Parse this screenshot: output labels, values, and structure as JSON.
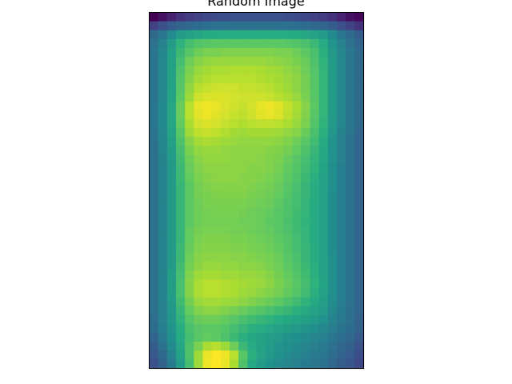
{
  "chart_data": {
    "type": "heatmap",
    "title": "Random Image",
    "colormap": "viridis",
    "axes_ticks": "none",
    "value_range": [
      0,
      1
    ],
    "rows": 40,
    "cols": 24,
    "grid": false,
    "values": [
      [
        0.0,
        0.05,
        0.1,
        0.15,
        0.18,
        0.2,
        0.22,
        0.23,
        0.24,
        0.25,
        0.25,
        0.25,
        0.25,
        0.25,
        0.25,
        0.24,
        0.23,
        0.22,
        0.2,
        0.18,
        0.15,
        0.1,
        0.05,
        0.02
      ],
      [
        0.2,
        0.25,
        0.3,
        0.33,
        0.35,
        0.36,
        0.37,
        0.38,
        0.38,
        0.38,
        0.38,
        0.38,
        0.38,
        0.38,
        0.38,
        0.38,
        0.37,
        0.36,
        0.35,
        0.33,
        0.3,
        0.25,
        0.2,
        0.15
      ],
      [
        0.35,
        0.4,
        0.48,
        0.55,
        0.58,
        0.6,
        0.62,
        0.62,
        0.63,
        0.63,
        0.63,
        0.63,
        0.63,
        0.63,
        0.63,
        0.62,
        0.62,
        0.6,
        0.58,
        0.55,
        0.48,
        0.4,
        0.35,
        0.3
      ],
      [
        0.38,
        0.45,
        0.55,
        0.65,
        0.7,
        0.73,
        0.74,
        0.75,
        0.75,
        0.75,
        0.75,
        0.75,
        0.75,
        0.75,
        0.75,
        0.74,
        0.73,
        0.71,
        0.68,
        0.62,
        0.52,
        0.45,
        0.38,
        0.33
      ],
      [
        0.4,
        0.46,
        0.57,
        0.68,
        0.74,
        0.78,
        0.8,
        0.8,
        0.81,
        0.81,
        0.81,
        0.81,
        0.81,
        0.81,
        0.8,
        0.8,
        0.78,
        0.75,
        0.71,
        0.64,
        0.54,
        0.46,
        0.4,
        0.35
      ],
      [
        0.4,
        0.47,
        0.58,
        0.7,
        0.78,
        0.82,
        0.84,
        0.85,
        0.85,
        0.85,
        0.85,
        0.85,
        0.85,
        0.84,
        0.83,
        0.82,
        0.8,
        0.77,
        0.72,
        0.65,
        0.55,
        0.47,
        0.4,
        0.35
      ],
      [
        0.4,
        0.47,
        0.58,
        0.72,
        0.8,
        0.85,
        0.87,
        0.88,
        0.88,
        0.89,
        0.89,
        0.89,
        0.88,
        0.87,
        0.86,
        0.84,
        0.82,
        0.78,
        0.73,
        0.66,
        0.55,
        0.47,
        0.4,
        0.35
      ],
      [
        0.4,
        0.47,
        0.58,
        0.73,
        0.82,
        0.87,
        0.89,
        0.9,
        0.9,
        0.9,
        0.9,
        0.9,
        0.89,
        0.88,
        0.87,
        0.85,
        0.83,
        0.79,
        0.74,
        0.66,
        0.55,
        0.47,
        0.4,
        0.35
      ],
      [
        0.4,
        0.47,
        0.58,
        0.74,
        0.84,
        0.9,
        0.92,
        0.93,
        0.93,
        0.93,
        0.92,
        0.92,
        0.91,
        0.9,
        0.88,
        0.86,
        0.83,
        0.79,
        0.74,
        0.66,
        0.55,
        0.47,
        0.4,
        0.35
      ],
      [
        0.4,
        0.47,
        0.59,
        0.75,
        0.86,
        0.93,
        0.95,
        0.95,
        0.95,
        0.94,
        0.93,
        0.93,
        0.93,
        0.92,
        0.9,
        0.88,
        0.85,
        0.8,
        0.74,
        0.66,
        0.55,
        0.47,
        0.4,
        0.35
      ],
      [
        0.4,
        0.48,
        0.6,
        0.77,
        0.9,
        0.97,
        0.98,
        0.97,
        0.95,
        0.93,
        0.92,
        0.94,
        0.97,
        0.98,
        0.96,
        0.92,
        0.88,
        0.82,
        0.75,
        0.66,
        0.55,
        0.47,
        0.4,
        0.35
      ],
      [
        0.4,
        0.48,
        0.6,
        0.77,
        0.9,
        0.96,
        0.98,
        0.96,
        0.94,
        0.92,
        0.91,
        0.93,
        0.96,
        0.97,
        0.95,
        0.91,
        0.87,
        0.81,
        0.74,
        0.66,
        0.55,
        0.47,
        0.4,
        0.35
      ],
      [
        0.4,
        0.48,
        0.6,
        0.76,
        0.88,
        0.94,
        0.95,
        0.94,
        0.92,
        0.9,
        0.89,
        0.9,
        0.91,
        0.91,
        0.9,
        0.88,
        0.85,
        0.8,
        0.73,
        0.65,
        0.54,
        0.46,
        0.4,
        0.35
      ],
      [
        0.39,
        0.47,
        0.59,
        0.74,
        0.86,
        0.91,
        0.92,
        0.91,
        0.89,
        0.87,
        0.86,
        0.87,
        0.87,
        0.87,
        0.86,
        0.84,
        0.82,
        0.77,
        0.71,
        0.64,
        0.53,
        0.45,
        0.39,
        0.34
      ],
      [
        0.38,
        0.46,
        0.57,
        0.72,
        0.82,
        0.87,
        0.88,
        0.87,
        0.86,
        0.85,
        0.84,
        0.84,
        0.84,
        0.84,
        0.83,
        0.81,
        0.78,
        0.74,
        0.69,
        0.62,
        0.52,
        0.44,
        0.38,
        0.33
      ],
      [
        0.38,
        0.46,
        0.56,
        0.7,
        0.8,
        0.84,
        0.85,
        0.85,
        0.84,
        0.83,
        0.83,
        0.83,
        0.83,
        0.82,
        0.81,
        0.79,
        0.76,
        0.72,
        0.67,
        0.61,
        0.51,
        0.44,
        0.38,
        0.33
      ],
      [
        0.38,
        0.45,
        0.55,
        0.69,
        0.78,
        0.82,
        0.84,
        0.84,
        0.84,
        0.83,
        0.83,
        0.83,
        0.82,
        0.81,
        0.8,
        0.77,
        0.74,
        0.7,
        0.66,
        0.6,
        0.51,
        0.44,
        0.38,
        0.33
      ],
      [
        0.38,
        0.45,
        0.55,
        0.68,
        0.77,
        0.81,
        0.83,
        0.83,
        0.83,
        0.83,
        0.83,
        0.82,
        0.82,
        0.81,
        0.79,
        0.76,
        0.73,
        0.69,
        0.65,
        0.59,
        0.5,
        0.43,
        0.38,
        0.33
      ],
      [
        0.38,
        0.45,
        0.55,
        0.68,
        0.76,
        0.8,
        0.82,
        0.83,
        0.83,
        0.83,
        0.82,
        0.82,
        0.81,
        0.8,
        0.78,
        0.75,
        0.72,
        0.68,
        0.64,
        0.58,
        0.5,
        0.43,
        0.38,
        0.33
      ],
      [
        0.38,
        0.45,
        0.55,
        0.67,
        0.75,
        0.79,
        0.81,
        0.82,
        0.82,
        0.82,
        0.82,
        0.81,
        0.8,
        0.79,
        0.77,
        0.74,
        0.71,
        0.67,
        0.63,
        0.58,
        0.5,
        0.43,
        0.38,
        0.33
      ],
      [
        0.38,
        0.45,
        0.55,
        0.67,
        0.75,
        0.79,
        0.8,
        0.81,
        0.81,
        0.81,
        0.81,
        0.8,
        0.79,
        0.78,
        0.76,
        0.73,
        0.7,
        0.67,
        0.63,
        0.57,
        0.49,
        0.43,
        0.38,
        0.33
      ],
      [
        0.38,
        0.45,
        0.55,
        0.67,
        0.75,
        0.78,
        0.8,
        0.8,
        0.8,
        0.8,
        0.8,
        0.79,
        0.78,
        0.77,
        0.75,
        0.72,
        0.7,
        0.66,
        0.62,
        0.57,
        0.49,
        0.43,
        0.38,
        0.33
      ],
      [
        0.38,
        0.45,
        0.55,
        0.67,
        0.75,
        0.78,
        0.79,
        0.8,
        0.8,
        0.8,
        0.79,
        0.78,
        0.77,
        0.76,
        0.74,
        0.72,
        0.69,
        0.66,
        0.62,
        0.57,
        0.49,
        0.43,
        0.38,
        0.33
      ],
      [
        0.38,
        0.45,
        0.55,
        0.67,
        0.75,
        0.78,
        0.79,
        0.79,
        0.79,
        0.79,
        0.78,
        0.78,
        0.77,
        0.75,
        0.74,
        0.71,
        0.69,
        0.65,
        0.62,
        0.57,
        0.49,
        0.43,
        0.38,
        0.33
      ],
      [
        0.38,
        0.45,
        0.55,
        0.67,
        0.76,
        0.79,
        0.8,
        0.8,
        0.8,
        0.79,
        0.79,
        0.78,
        0.77,
        0.76,
        0.74,
        0.72,
        0.69,
        0.66,
        0.62,
        0.57,
        0.49,
        0.43,
        0.38,
        0.33
      ],
      [
        0.38,
        0.45,
        0.55,
        0.67,
        0.76,
        0.8,
        0.81,
        0.81,
        0.81,
        0.8,
        0.8,
        0.79,
        0.78,
        0.77,
        0.75,
        0.73,
        0.7,
        0.66,
        0.62,
        0.57,
        0.49,
        0.43,
        0.38,
        0.33
      ],
      [
        0.38,
        0.45,
        0.55,
        0.68,
        0.77,
        0.81,
        0.82,
        0.82,
        0.82,
        0.81,
        0.81,
        0.8,
        0.79,
        0.78,
        0.76,
        0.73,
        0.7,
        0.67,
        0.63,
        0.57,
        0.49,
        0.43,
        0.38,
        0.33
      ],
      [
        0.38,
        0.45,
        0.55,
        0.68,
        0.78,
        0.82,
        0.83,
        0.83,
        0.83,
        0.82,
        0.82,
        0.81,
        0.8,
        0.79,
        0.77,
        0.74,
        0.71,
        0.67,
        0.63,
        0.58,
        0.5,
        0.43,
        0.38,
        0.33
      ],
      [
        0.38,
        0.45,
        0.55,
        0.69,
        0.79,
        0.83,
        0.85,
        0.85,
        0.84,
        0.84,
        0.83,
        0.83,
        0.82,
        0.8,
        0.78,
        0.75,
        0.72,
        0.68,
        0.64,
        0.58,
        0.5,
        0.43,
        0.38,
        0.33
      ],
      [
        0.38,
        0.45,
        0.56,
        0.7,
        0.81,
        0.86,
        0.87,
        0.87,
        0.86,
        0.86,
        0.85,
        0.85,
        0.84,
        0.82,
        0.79,
        0.76,
        0.73,
        0.69,
        0.64,
        0.58,
        0.5,
        0.43,
        0.38,
        0.33
      ],
      [
        0.38,
        0.45,
        0.56,
        0.71,
        0.82,
        0.88,
        0.9,
        0.9,
        0.89,
        0.88,
        0.87,
        0.86,
        0.85,
        0.83,
        0.8,
        0.77,
        0.74,
        0.7,
        0.65,
        0.59,
        0.5,
        0.43,
        0.38,
        0.33
      ],
      [
        0.38,
        0.45,
        0.56,
        0.71,
        0.82,
        0.88,
        0.9,
        0.9,
        0.89,
        0.88,
        0.86,
        0.85,
        0.83,
        0.81,
        0.79,
        0.76,
        0.73,
        0.69,
        0.64,
        0.58,
        0.5,
        0.43,
        0.38,
        0.33
      ],
      [
        0.38,
        0.45,
        0.55,
        0.69,
        0.79,
        0.85,
        0.87,
        0.87,
        0.86,
        0.85,
        0.83,
        0.81,
        0.79,
        0.77,
        0.75,
        0.72,
        0.69,
        0.65,
        0.61,
        0.56,
        0.49,
        0.43,
        0.38,
        0.33
      ],
      [
        0.38,
        0.44,
        0.54,
        0.67,
        0.76,
        0.81,
        0.83,
        0.83,
        0.81,
        0.79,
        0.77,
        0.75,
        0.73,
        0.71,
        0.69,
        0.67,
        0.64,
        0.61,
        0.58,
        0.54,
        0.47,
        0.42,
        0.37,
        0.33
      ],
      [
        0.37,
        0.44,
        0.53,
        0.65,
        0.73,
        0.77,
        0.78,
        0.78,
        0.76,
        0.74,
        0.71,
        0.69,
        0.67,
        0.65,
        0.63,
        0.61,
        0.59,
        0.57,
        0.55,
        0.51,
        0.45,
        0.41,
        0.37,
        0.32
      ],
      [
        0.36,
        0.43,
        0.52,
        0.63,
        0.71,
        0.74,
        0.75,
        0.75,
        0.73,
        0.7,
        0.67,
        0.64,
        0.62,
        0.6,
        0.58,
        0.56,
        0.54,
        0.52,
        0.5,
        0.47,
        0.43,
        0.39,
        0.36,
        0.31
      ],
      [
        0.33,
        0.41,
        0.5,
        0.62,
        0.7,
        0.74,
        0.76,
        0.75,
        0.72,
        0.68,
        0.64,
        0.61,
        0.58,
        0.56,
        0.54,
        0.52,
        0.5,
        0.48,
        0.46,
        0.44,
        0.4,
        0.37,
        0.34,
        0.29
      ],
      [
        0.3,
        0.38,
        0.48,
        0.6,
        0.72,
        0.8,
        0.88,
        0.9,
        0.86,
        0.78,
        0.68,
        0.62,
        0.58,
        0.55,
        0.52,
        0.5,
        0.48,
        0.46,
        0.44,
        0.42,
        0.38,
        0.34,
        0.31,
        0.26
      ],
      [
        0.28,
        0.35,
        0.45,
        0.58,
        0.72,
        0.86,
        0.97,
        1.0,
        0.98,
        0.9,
        0.74,
        0.64,
        0.58,
        0.54,
        0.51,
        0.48,
        0.46,
        0.44,
        0.42,
        0.4,
        0.36,
        0.32,
        0.29,
        0.24
      ],
      [
        0.25,
        0.32,
        0.42,
        0.55,
        0.7,
        0.86,
        0.98,
        1.0,
        0.97,
        0.88,
        0.72,
        0.61,
        0.55,
        0.51,
        0.48,
        0.46,
        0.44,
        0.42,
        0.4,
        0.38,
        0.34,
        0.3,
        0.27,
        0.22
      ]
    ]
  }
}
